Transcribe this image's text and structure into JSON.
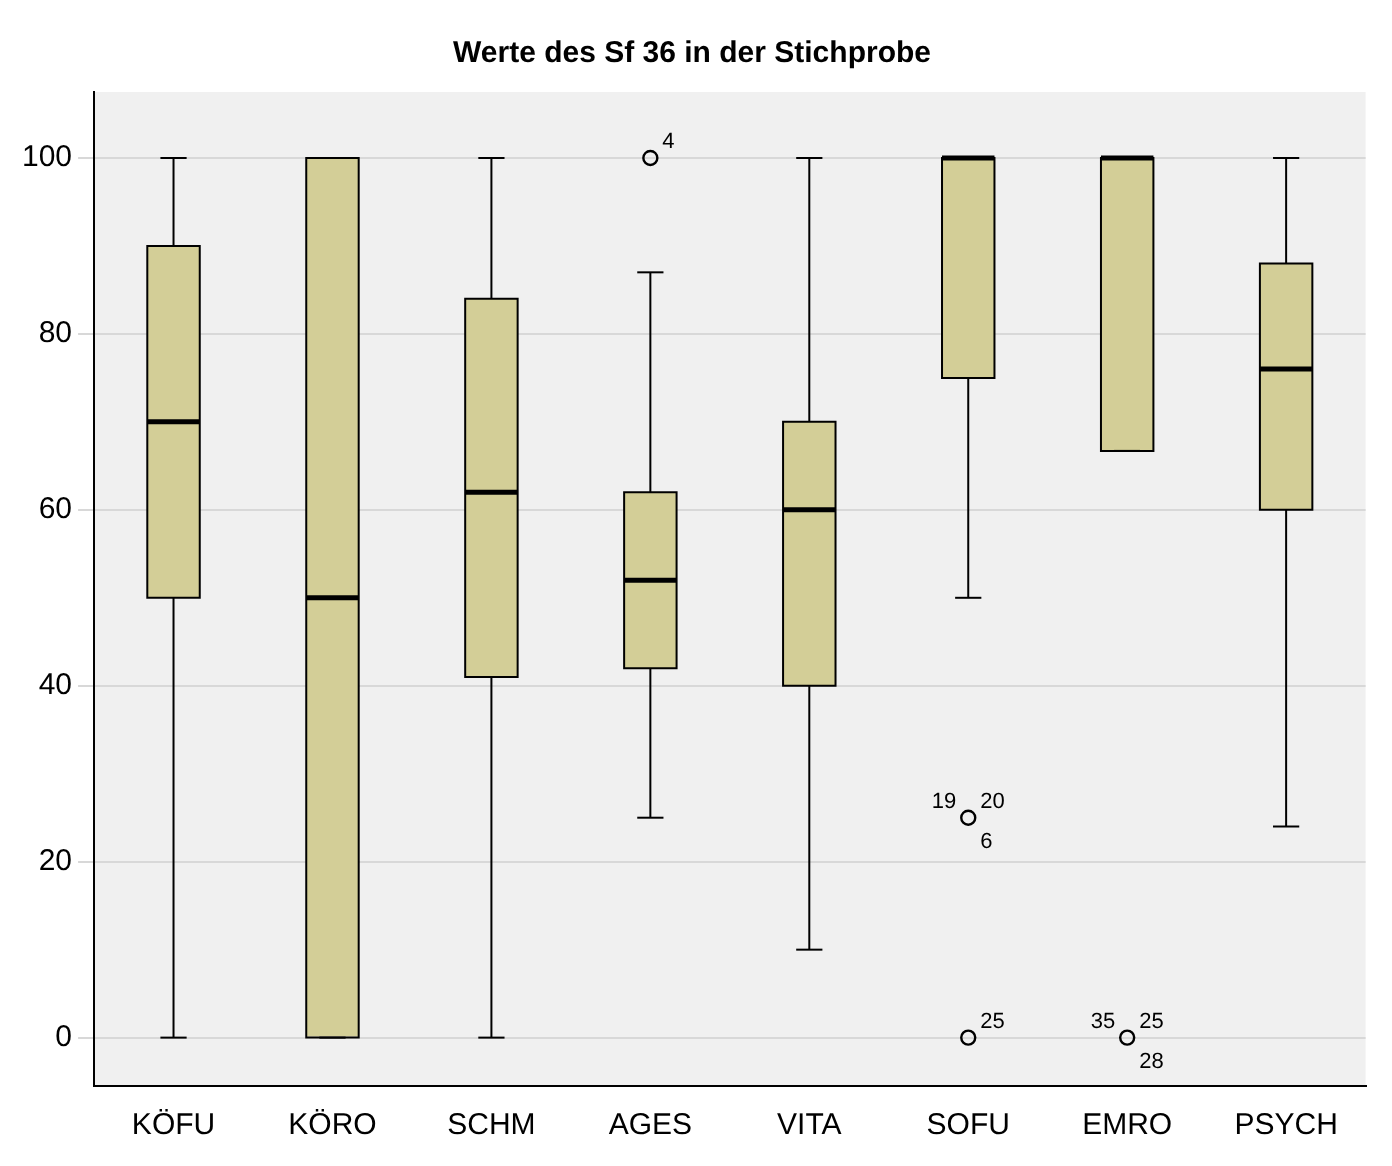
{
  "chart_data": {
    "type": "box",
    "title": "Werte des Sf 36 in der Stichprobe",
    "categories": [
      "KÖFU",
      "KÖRO",
      "SCHM",
      "AGES",
      "VITA",
      "SOFU",
      "EMRO",
      "PSYCH"
    ],
    "color": "#d3ce97",
    "boxes": [
      {
        "low": 0,
        "q1": 50,
        "median": 70,
        "q3": 90,
        "high": 100
      },
      {
        "low": 0,
        "q1": 0,
        "median": 50,
        "q3": 100,
        "high": 100
      },
      {
        "low": 0,
        "q1": 41,
        "median": 62,
        "q3": 84,
        "high": 100
      },
      {
        "low": 25,
        "q1": 42,
        "median": 52,
        "q3": 62,
        "high": 87
      },
      {
        "low": 10,
        "q1": 40,
        "median": 60,
        "q3": 70,
        "high": 100
      },
      {
        "low": 50,
        "q1": 75,
        "median": 100,
        "q3": 100,
        "high": 100
      },
      {
        "low": 66.7,
        "q1": 66.7,
        "median": 100,
        "q3": 100,
        "high": 100
      },
      {
        "low": 24,
        "q1": 60,
        "median": 76,
        "q3": 88,
        "high": 100
      }
    ],
    "series": [
      {
        "type": "scatter",
        "x": [
          "AGES",
          "SOFU",
          "SOFU",
          "EMRO"
        ],
        "values": [
          100,
          25,
          0,
          0
        ],
        "color": "#000000"
      }
    ],
    "marker": "circle",
    "annotations": [
      {
        "text": "4",
        "x": "AGES",
        "y": 100
      },
      {
        "text": "20",
        "x": "SOFU",
        "y": 25
      },
      {
        "text": "19",
        "x": "SOFU",
        "y": 25
      },
      {
        "text": "6",
        "x": "SOFU",
        "y": 25
      },
      {
        "text": "25",
        "x": "SOFU",
        "y": 0
      },
      {
        "text": "25",
        "x": "EMRO",
        "y": 0
      },
      {
        "text": "35",
        "x": "EMRO",
        "y": 0
      },
      {
        "text": "28",
        "x": "EMRO",
        "y": 0
      }
    ],
    "ylim": [
      -5.5,
      107.5
    ],
    "yticks": [
      0,
      20,
      40,
      60,
      80,
      100
    ],
    "grid": "y",
    "legend": false
  }
}
